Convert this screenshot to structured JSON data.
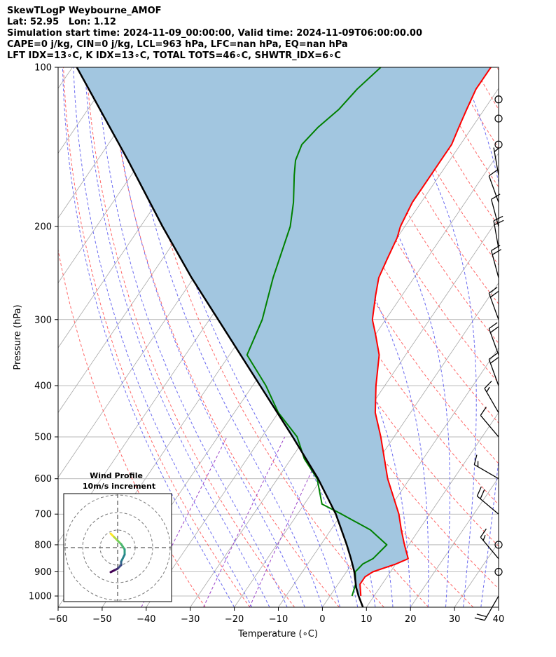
{
  "header": {
    "line1": "SkewTLogP Weybourne_AMOF",
    "line2": "Lat: 52.95   Lon: 1.12",
    "line3": "Simulation start time: 2024-11-09_00:00:00, Valid time: 2024-11-09T06:00:00.00",
    "line4": "CAPE=0 j/kg, CIN=0 j/kg, LCL=963 hPa, LFC=nan hPa, EQ=nan hPa",
    "line5": "LFT IDX=13∘C, K IDX=13∘C, TOTAL TOTS=46∘C, SHWTR_IDX=6∘C"
  },
  "chart_data": {
    "type": "line",
    "subtype": "skew-t-logp",
    "xlabel": "Temperature (∘C)",
    "ylabel": "Pressure (hPa)",
    "xlim": [
      -60,
      40
    ],
    "ylim": [
      1050,
      100
    ],
    "yscale": "log",
    "xticks": [
      -60,
      -50,
      -40,
      -30,
      -20,
      -10,
      0,
      10,
      20,
      30,
      40
    ],
    "xtick_labels": [
      "−60",
      "−50",
      "−40",
      "−30",
      "−20",
      "−10",
      "0",
      "10",
      "20",
      "30",
      "40"
    ],
    "yticks": [
      1000,
      900,
      800,
      700,
      600,
      500,
      400,
      300,
      200,
      100
    ],
    "grid": true,
    "colors": {
      "temperature": "#ff0000",
      "dewpoint": "#008000",
      "parcel": "#000000",
      "shading": "#a2c6e0",
      "dry_adiabat": "#ff6666",
      "moist_adiabat": "#6a6af0",
      "mixing_ratio": "#9b44c8",
      "isotherm": "#a8a8a8"
    },
    "series": [
      {
        "key": "temperature",
        "p": [
          1000,
          950,
          920,
          900,
          870,
          850,
          800,
          750,
          700,
          600,
          500,
          450,
          400,
          350,
          320,
          300,
          270,
          250,
          230,
          210,
          200,
          180,
          170,
          160,
          150,
          140,
          130,
          120,
          110,
          100
        ],
        "t": [
          7,
          5,
          5,
          6,
          10,
          12,
          9,
          6,
          3,
          -5,
          -13,
          -18,
          -22,
          -26,
          -30,
          -33,
          -36,
          -38,
          -39,
          -40,
          -41,
          -42,
          -42,
          -42,
          -42,
          -42,
          -43,
          -44,
          -45,
          -45
        ]
      },
      {
        "key": "dewpoint",
        "p": [
          1000,
          950,
          900,
          870,
          850,
          800,
          750,
          700,
          670,
          600,
          550,
          500,
          450,
          400,
          350,
          300,
          250,
          200,
          180,
          160,
          150,
          140,
          130,
          120,
          110,
          100
        ],
        "t": [
          5,
          4,
          2,
          2.5,
          4,
          5,
          -1,
          -10,
          -16,
          -21,
          -27,
          -32,
          -40,
          -47,
          -56,
          -58,
          -62,
          -66,
          -69,
          -73,
          -75,
          -76,
          -75,
          -73,
          -72,
          -70
        ]
      },
      {
        "key": "parcel",
        "p": [
          1050,
          1000,
          963,
          900,
          850,
          800,
          700,
          600,
          500,
          400,
          300,
          250,
          200,
          150,
          100
        ],
        "t": [
          9.2,
          6.5,
          4.6,
          1.8,
          -1.0,
          -4.1,
          -11.3,
          -20.8,
          -33.0,
          -48.3,
          -68.0,
          -80.5,
          -95.0,
          -113.0,
          -139.0
        ]
      }
    ],
    "wind_barbs": {
      "p": [
        1000,
        900,
        850,
        800,
        700,
        600,
        500,
        450,
        400,
        350,
        300,
        250,
        220,
        200,
        180,
        160,
        140,
        125,
        115
      ],
      "direction_deg": [
        210,
        0,
        320,
        0,
        310,
        300,
        320,
        330,
        340,
        340,
        340,
        345,
        350,
        345,
        340,
        350,
        0,
        0,
        0
      ],
      "speed_kt": [
        20,
        0,
        15,
        0,
        20,
        15,
        10,
        15,
        20,
        20,
        20,
        20,
        20,
        10,
        10,
        5,
        0,
        0,
        0
      ]
    },
    "inset": {
      "title_line1": "Wind Profile",
      "title_line2": "10m/s increment",
      "u": [
        -2,
        -1,
        0,
        1,
        2,
        2,
        1,
        1,
        0,
        -1,
        -2
      ],
      "v": [
        4,
        3,
        2,
        1,
        -0.5,
        -2,
        -4,
        -5,
        -6,
        -6.5,
        -7
      ]
    }
  }
}
